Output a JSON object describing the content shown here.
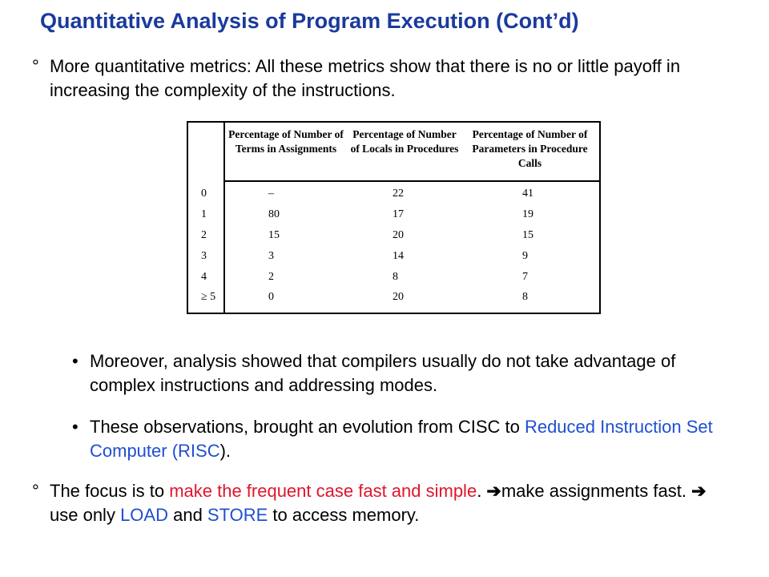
{
  "title": "Quantitative Analysis of Program Execution (Cont’d)",
  "bullet1": {
    "mark": "°",
    "text": "More quantitative metrics: All these metrics show that there is no or little payoff in increasing the complexity of the instructions."
  },
  "table": {
    "headers": [
      "Percentage of Number of Terms in Assignments",
      "Percentage of Number of Locals in Procedures",
      "Percentage of Number of Parameters in Procedure Calls"
    ],
    "rows": [
      [
        "0",
        "–",
        "22",
        "41"
      ],
      [
        "1",
        "80",
        "17",
        "19"
      ],
      [
        "2",
        "15",
        "20",
        "15"
      ],
      [
        "3",
        "3",
        "14",
        "9"
      ],
      [
        "4",
        "2",
        "8",
        "7"
      ],
      [
        "≥ 5",
        "0",
        "20",
        "8"
      ]
    ]
  },
  "bullet2": {
    "mark": "•",
    "text": "Moreover, analysis showed that compilers usually do not take advantage of complex instructions and addressing modes."
  },
  "bullet3": {
    "mark": "•",
    "text_before": "These observations, brought an evolution from CISC to ",
    "highlight": "Reduced Instruction Set Computer (RISC",
    "text_after": ")."
  },
  "bullet4": {
    "mark": "°",
    "part1": "The focus is to ",
    "red_text": "make the frequent case fast and simple",
    "part2": ". ",
    "arrow1": "➔",
    "part3": "make assignments fast. ",
    "arrow2": "➔",
    "part4": " use only ",
    "load": "LOAD",
    "part5": " and ",
    "store": "STORE",
    "part6": " to access memory."
  },
  "colors": {
    "title": "#1a3a9c",
    "highlight_blue": "#1f4fd1",
    "highlight_red": "#e0152c"
  }
}
